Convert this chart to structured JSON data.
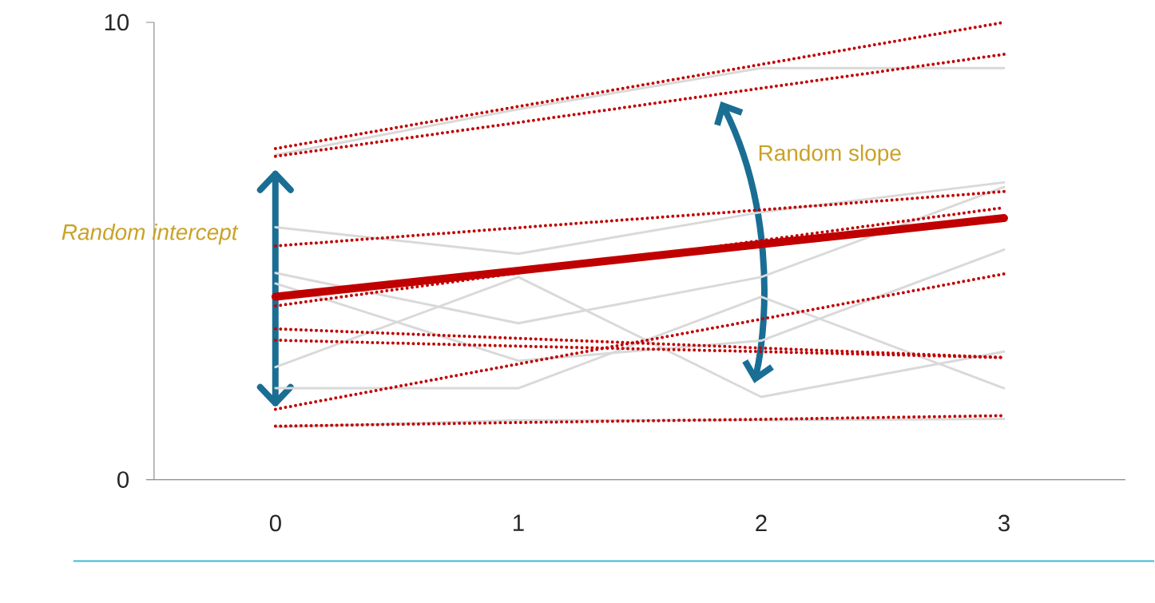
{
  "chart_data": {
    "type": "line",
    "categories": [
      "0",
      "1",
      "2",
      "3"
    ],
    "ylim": [
      0,
      10
    ],
    "yticks": [
      0,
      10
    ],
    "annotations": [
      "Random intercept",
      "Random slope"
    ],
    "series": [
      {
        "color": "#d9d9d9",
        "line_style": "solid",
        "values": [
          7.1,
          8.1,
          9.0,
          9.0
        ]
      },
      {
        "color": "#d9d9d9",
        "line_style": "solid",
        "values": [
          5.52,
          4.94,
          5.85,
          6.5
        ]
      },
      {
        "color": "#d9d9d9",
        "line_style": "solid",
        "values": [
          4.52,
          3.42,
          4.43,
          6.4
        ]
      },
      {
        "color": "#d9d9d9",
        "line_style": "solid",
        "values": [
          4.29,
          2.6,
          3.04,
          5.03
        ]
      },
      {
        "color": "#d9d9d9",
        "line_style": "solid",
        "values": [
          2.0,
          2.0,
          4.0,
          2.0
        ]
      },
      {
        "color": "#d9d9d9",
        "line_style": "solid",
        "values": [
          2.46,
          4.43,
          1.81,
          2.8
        ]
      },
      {
        "color": "#d9d9d9",
        "line_style": "solid",
        "values": [
          1.15,
          1.3,
          1.3,
          1.33
        ]
      },
      {
        "color": "#c00000",
        "line_style": "dotted",
        "values": [
          7.24,
          8.16,
          9.08,
          10.0
        ]
      },
      {
        "color": "#c00000",
        "line_style": "dotted",
        "values": [
          7.07,
          7.81,
          8.56,
          9.3
        ]
      },
      {
        "color": "#c00000",
        "line_style": "dotted",
        "values": [
          5.11,
          5.51,
          5.9,
          6.3
        ]
      },
      {
        "color": "#c00000",
        "line_style": "dotted",
        "values": [
          3.8,
          4.52,
          5.23,
          5.95
        ]
      },
      {
        "color": "#c00000",
        "line_style": "dotted",
        "values": [
          3.3,
          3.09,
          2.88,
          2.67
        ]
      },
      {
        "color": "#c00000",
        "line_style": "dotted",
        "values": [
          3.05,
          2.92,
          2.8,
          2.67
        ]
      },
      {
        "color": "#c00000",
        "line_style": "dotted",
        "values": [
          1.54,
          2.53,
          3.51,
          4.5
        ]
      },
      {
        "color": "#c00000",
        "line_style": "dotted",
        "values": [
          1.17,
          1.25,
          1.32,
          1.4
        ]
      },
      {
        "color": "#c00000",
        "line_style": "solid",
        "values": [
          4.0,
          4.57,
          5.15,
          5.72
        ]
      }
    ]
  }
}
